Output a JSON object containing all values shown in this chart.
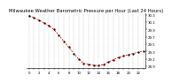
{
  "title": "Milwaukee Weather Barometric Pressure per Hour (Last 24 Hours)",
  "hours": [
    0,
    1,
    2,
    3,
    4,
    5,
    6,
    7,
    8,
    9,
    10,
    11,
    12,
    13,
    14,
    15,
    16,
    17,
    18,
    19,
    20,
    21,
    22,
    23
  ],
  "pressure": [
    30.28,
    30.22,
    30.15,
    30.08,
    30.0,
    29.9,
    29.75,
    29.58,
    29.42,
    29.25,
    29.1,
    28.98,
    28.95,
    28.93,
    28.92,
    28.95,
    29.02,
    29.08,
    29.14,
    29.18,
    29.22,
    29.25,
    29.28,
    29.32
  ],
  "line_color": "#ff0000",
  "marker_color": "#000000",
  "bg_color": "#ffffff",
  "grid_color": "#888888",
  "title_color": "#000000",
  "ylim": [
    28.85,
    30.35
  ],
  "yticks": [
    28.9,
    29.1,
    29.3,
    29.5,
    29.7,
    29.9,
    30.1,
    30.3
  ],
  "title_fontsize": 3.8,
  "tick_fontsize": 2.8,
  "line_width": 0.6,
  "marker_size": 1.2
}
